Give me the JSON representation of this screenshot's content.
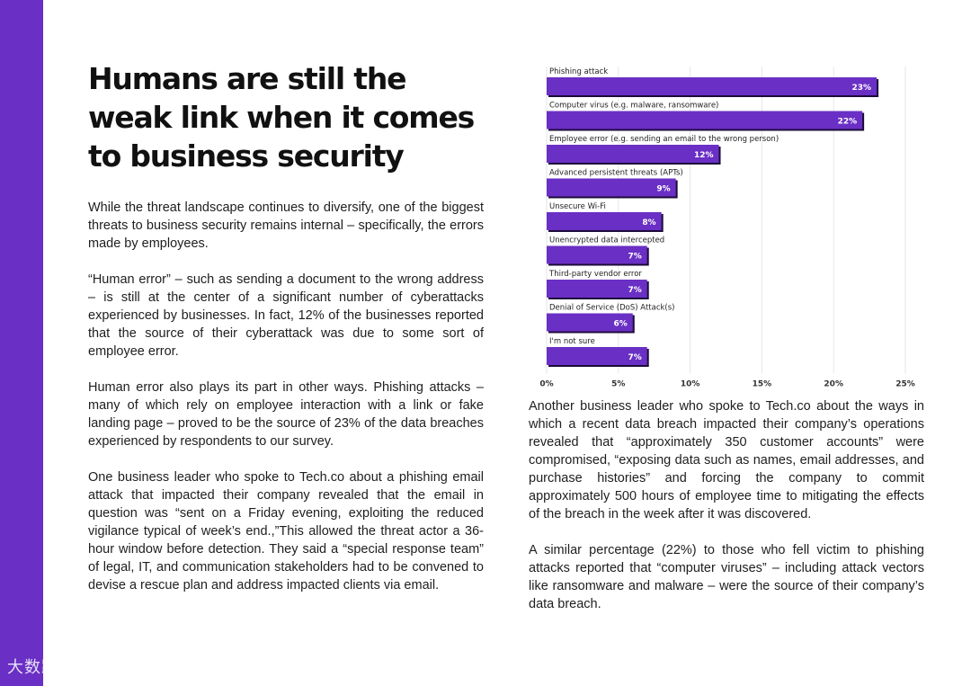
{
  "page": {
    "title": "Humans are still the weak link when it comes to business security",
    "left_paragraphs": [
      "While the threat landscape continues to diversify, one of the biggest threats to business security remains internal – specifically, the errors made by employees.",
      "“Human error” – such as sending a document to the wrong address – is still at the center of a significant number of cyberattacks experienced by businesses. In fact, 12% of the businesses reported that the source of their cyberattack was due to some sort of employee error.",
      "Human error also plays its part in other ways. Phishing attacks – many of which rely on employee interaction with a link or fake landing page – proved to be the source of 23% of the data breaches experienced by respondents to our survey.",
      "One business leader who spoke to Tech.co about a phishing email attack that impacted their company revealed that the email in question was “sent on a Friday evening, exploiting the reduced vigilance typical of week’s end.,”This allowed the threat actor a 36-hour window before detection. They said a “special response team” of legal, IT, and communication stakeholders had to be convened to devise a rescue plan and address impacted clients via email."
    ],
    "right_paragraphs": [
      "Another business leader who spoke to Tech.co about the ways in which a recent data breach impacted their company’s operations revealed that “approximately 350 customer accounts” were compromised, “exposing data such as names, email addresses, and purchase histories” and forcing the company to commit approximately 500 hours of employee time to mitigating the effects of the breach in the week after it was discovered.",
      "A similar percentage (22%) to those who fell victim to phishing attacks reported that “computer viruses” – including attack vectors like ransomware and malware – were the source of their company’s data breach."
    ],
    "watermark": "大数跨境"
  },
  "colors": {
    "accent": "#6a2fc4",
    "bar": "#6a2fc4",
    "bar_shadow": "#1c0b3a"
  },
  "chart_data": {
    "type": "bar",
    "orientation": "horizontal",
    "categories": [
      "Phishing attack",
      "Computer virus (e.g. malware, ransomware)",
      "Employee error (e.g. sending an email to the wrong person)",
      "Advanced persistent threats (APTs)",
      "Unsecure Wi-Fi",
      "Unencrypted data intercepted",
      "Third-party vendor error",
      "Denial of Service (DoS) Attack(s)",
      "I'm not sure"
    ],
    "values": [
      23,
      22,
      12,
      9,
      8,
      7,
      7,
      6,
      7
    ],
    "value_labels": [
      "23%",
      "22%",
      "12%",
      "9%",
      "8%",
      "7%",
      "7%",
      "6%",
      "7%"
    ],
    "xlim": [
      0,
      25
    ],
    "xticks": [
      0,
      5,
      10,
      15,
      20,
      25
    ],
    "xtick_labels": [
      "0%",
      "5%",
      "10%",
      "15%",
      "20%",
      "25%"
    ],
    "grid": true
  }
}
